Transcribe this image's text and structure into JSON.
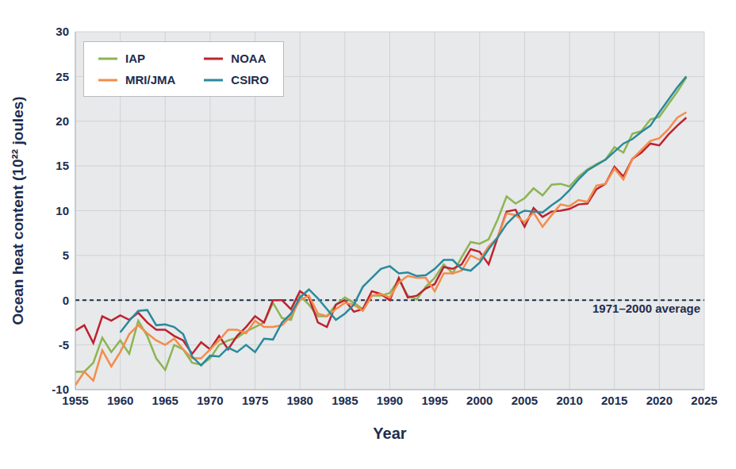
{
  "chart_data": {
    "type": "line",
    "x_label": "Year",
    "y_label": "Ocean heat content (10²² joules)",
    "x": [
      1955,
      1956,
      1957,
      1958,
      1959,
      1960,
      1961,
      1962,
      1963,
      1964,
      1965,
      1966,
      1967,
      1968,
      1969,
      1970,
      1971,
      1972,
      1973,
      1974,
      1975,
      1976,
      1977,
      1978,
      1979,
      1980,
      1981,
      1982,
      1983,
      1984,
      1985,
      1986,
      1987,
      1988,
      1989,
      1990,
      1991,
      1992,
      1993,
      1994,
      1995,
      1996,
      1997,
      1998,
      1999,
      2000,
      2001,
      2002,
      2003,
      2004,
      2005,
      2006,
      2007,
      2008,
      2009,
      2010,
      2011,
      2012,
      2013,
      2014,
      2015,
      2016,
      2017,
      2018,
      2019,
      2020,
      2021,
      2022,
      2023
    ],
    "series": [
      {
        "name": "IAP",
        "color": "#8cb454",
        "values": [
          -8,
          -8,
          -7,
          -4.2,
          -5.8,
          -4.5,
          -6,
          -2.3,
          -4,
          -6.5,
          -7.8,
          -5,
          -5.5,
          -7,
          -7.2,
          -6.5,
          -5,
          -4.5,
          -4.2,
          -3.5,
          -3,
          -2.5,
          -0.3,
          -2,
          -2.2,
          0.5,
          -0.5,
          -1.8,
          -1.8,
          -0.5,
          0.3,
          -0.3,
          -1,
          0.5,
          0.5,
          0.8,
          2.3,
          0.5,
          0.1,
          1.5,
          2.5,
          4,
          3,
          4.8,
          6.5,
          6.3,
          6.8,
          9,
          11.6,
          10.8,
          11.4,
          12.5,
          11.7,
          12.9,
          13,
          12.7,
          13.8,
          14.6,
          15.2,
          15.7,
          17.1,
          16.5,
          18.6,
          18.9,
          20.2,
          20.5,
          21.9,
          23.3,
          24.9
        ]
      },
      {
        "name": "NOAA",
        "color": "#be2230",
        "values": [
          -3.4,
          -2.8,
          -4.8,
          -1.8,
          -2.3,
          -1.7,
          -2.2,
          -1.4,
          -2.5,
          -3.3,
          -3.3,
          -4,
          -4.5,
          -6,
          -4.7,
          -5.5,
          -4,
          -5.5,
          -4,
          -3,
          -1.8,
          -2.5,
          0,
          0,
          -1,
          1,
          0.3,
          -2.5,
          -3,
          -0.5,
          0,
          -1.3,
          -1,
          1,
          0.7,
          0,
          2.5,
          0.3,
          0.5,
          1.3,
          1.8,
          3.7,
          3.5,
          4,
          5.7,
          5.4,
          4,
          7,
          9.9,
          10.1,
          8.2,
          10.3,
          9.3,
          9.9,
          10,
          10.2,
          10.7,
          10.8,
          12.4,
          13,
          14.9,
          13.8,
          15.8,
          16.5,
          17.5,
          17.3,
          18.5,
          19.5,
          20.4
        ]
      },
      {
        "name": "MRI/JMA",
        "color": "#f38d4a",
        "values": [
          -9.5,
          -8,
          -9,
          -5.6,
          -7.4,
          -5.8,
          -3.8,
          -2.8,
          -3.7,
          -4.5,
          -5,
          -4.3,
          -5.5,
          -6.5,
          -6.5,
          -5.5,
          -4.5,
          -3.3,
          -3.3,
          -3.7,
          -2.3,
          -3,
          -3,
          -2.8,
          -1.8,
          0,
          0.5,
          -1.5,
          -1.8,
          -1,
          -0.3,
          -0.5,
          -1.2,
          0.5,
          0.7,
          0.3,
          2,
          2.7,
          2.5,
          2.5,
          1,
          3,
          3,
          3.3,
          5,
          4.5,
          6,
          7,
          9.7,
          9.5,
          8.7,
          9.8,
          8.2,
          9.5,
          10.7,
          10.5,
          11.2,
          11,
          12.8,
          13,
          14.7,
          13.5,
          15.8,
          16.8,
          17.8,
          18.1,
          19.1,
          20.4,
          21
        ]
      },
      {
        "name": "CSIRO",
        "color": "#2a8a9c",
        "values": [
          null,
          null,
          null,
          null,
          null,
          -3.6,
          -2.3,
          -1.2,
          -1.1,
          -2.8,
          -2.7,
          -3,
          -3.8,
          -6.3,
          -7.3,
          -6.2,
          -6.3,
          -5.3,
          -5.8,
          -5,
          -5.8,
          -4.3,
          -4.4,
          -2.5,
          -1.5,
          0.3,
          1.2,
          0.2,
          -1,
          -2.2,
          -1.5,
          -0.5,
          1.5,
          2.5,
          3.5,
          3.8,
          3,
          3.1,
          2.7,
          2.8,
          3.5,
          4.5,
          4.5,
          3.5,
          3.3,
          4.2,
          5.7,
          7,
          8.5,
          9.5,
          10,
          9.9,
          9.8,
          10.6,
          11.3,
          12.3,
          13.5,
          14.5,
          15.1,
          15.7,
          16.6,
          17.5,
          18,
          18.8,
          19.5,
          21,
          22.4,
          23.8,
          25
        ]
      }
    ],
    "xlim": [
      1955,
      2025
    ],
    "xticks": [
      1955,
      1960,
      1965,
      1970,
      1975,
      1980,
      1985,
      1990,
      1995,
      2000,
      2005,
      2010,
      2015,
      2020,
      2025
    ],
    "ylim": [
      -10,
      30
    ],
    "yticks": [
      -10,
      -5,
      0,
      5,
      10,
      15,
      20,
      25,
      30
    ],
    "grid": true,
    "legend": "upper left",
    "annotations": [
      {
        "y": 0,
        "text": "1971–2000 average"
      }
    ]
  }
}
